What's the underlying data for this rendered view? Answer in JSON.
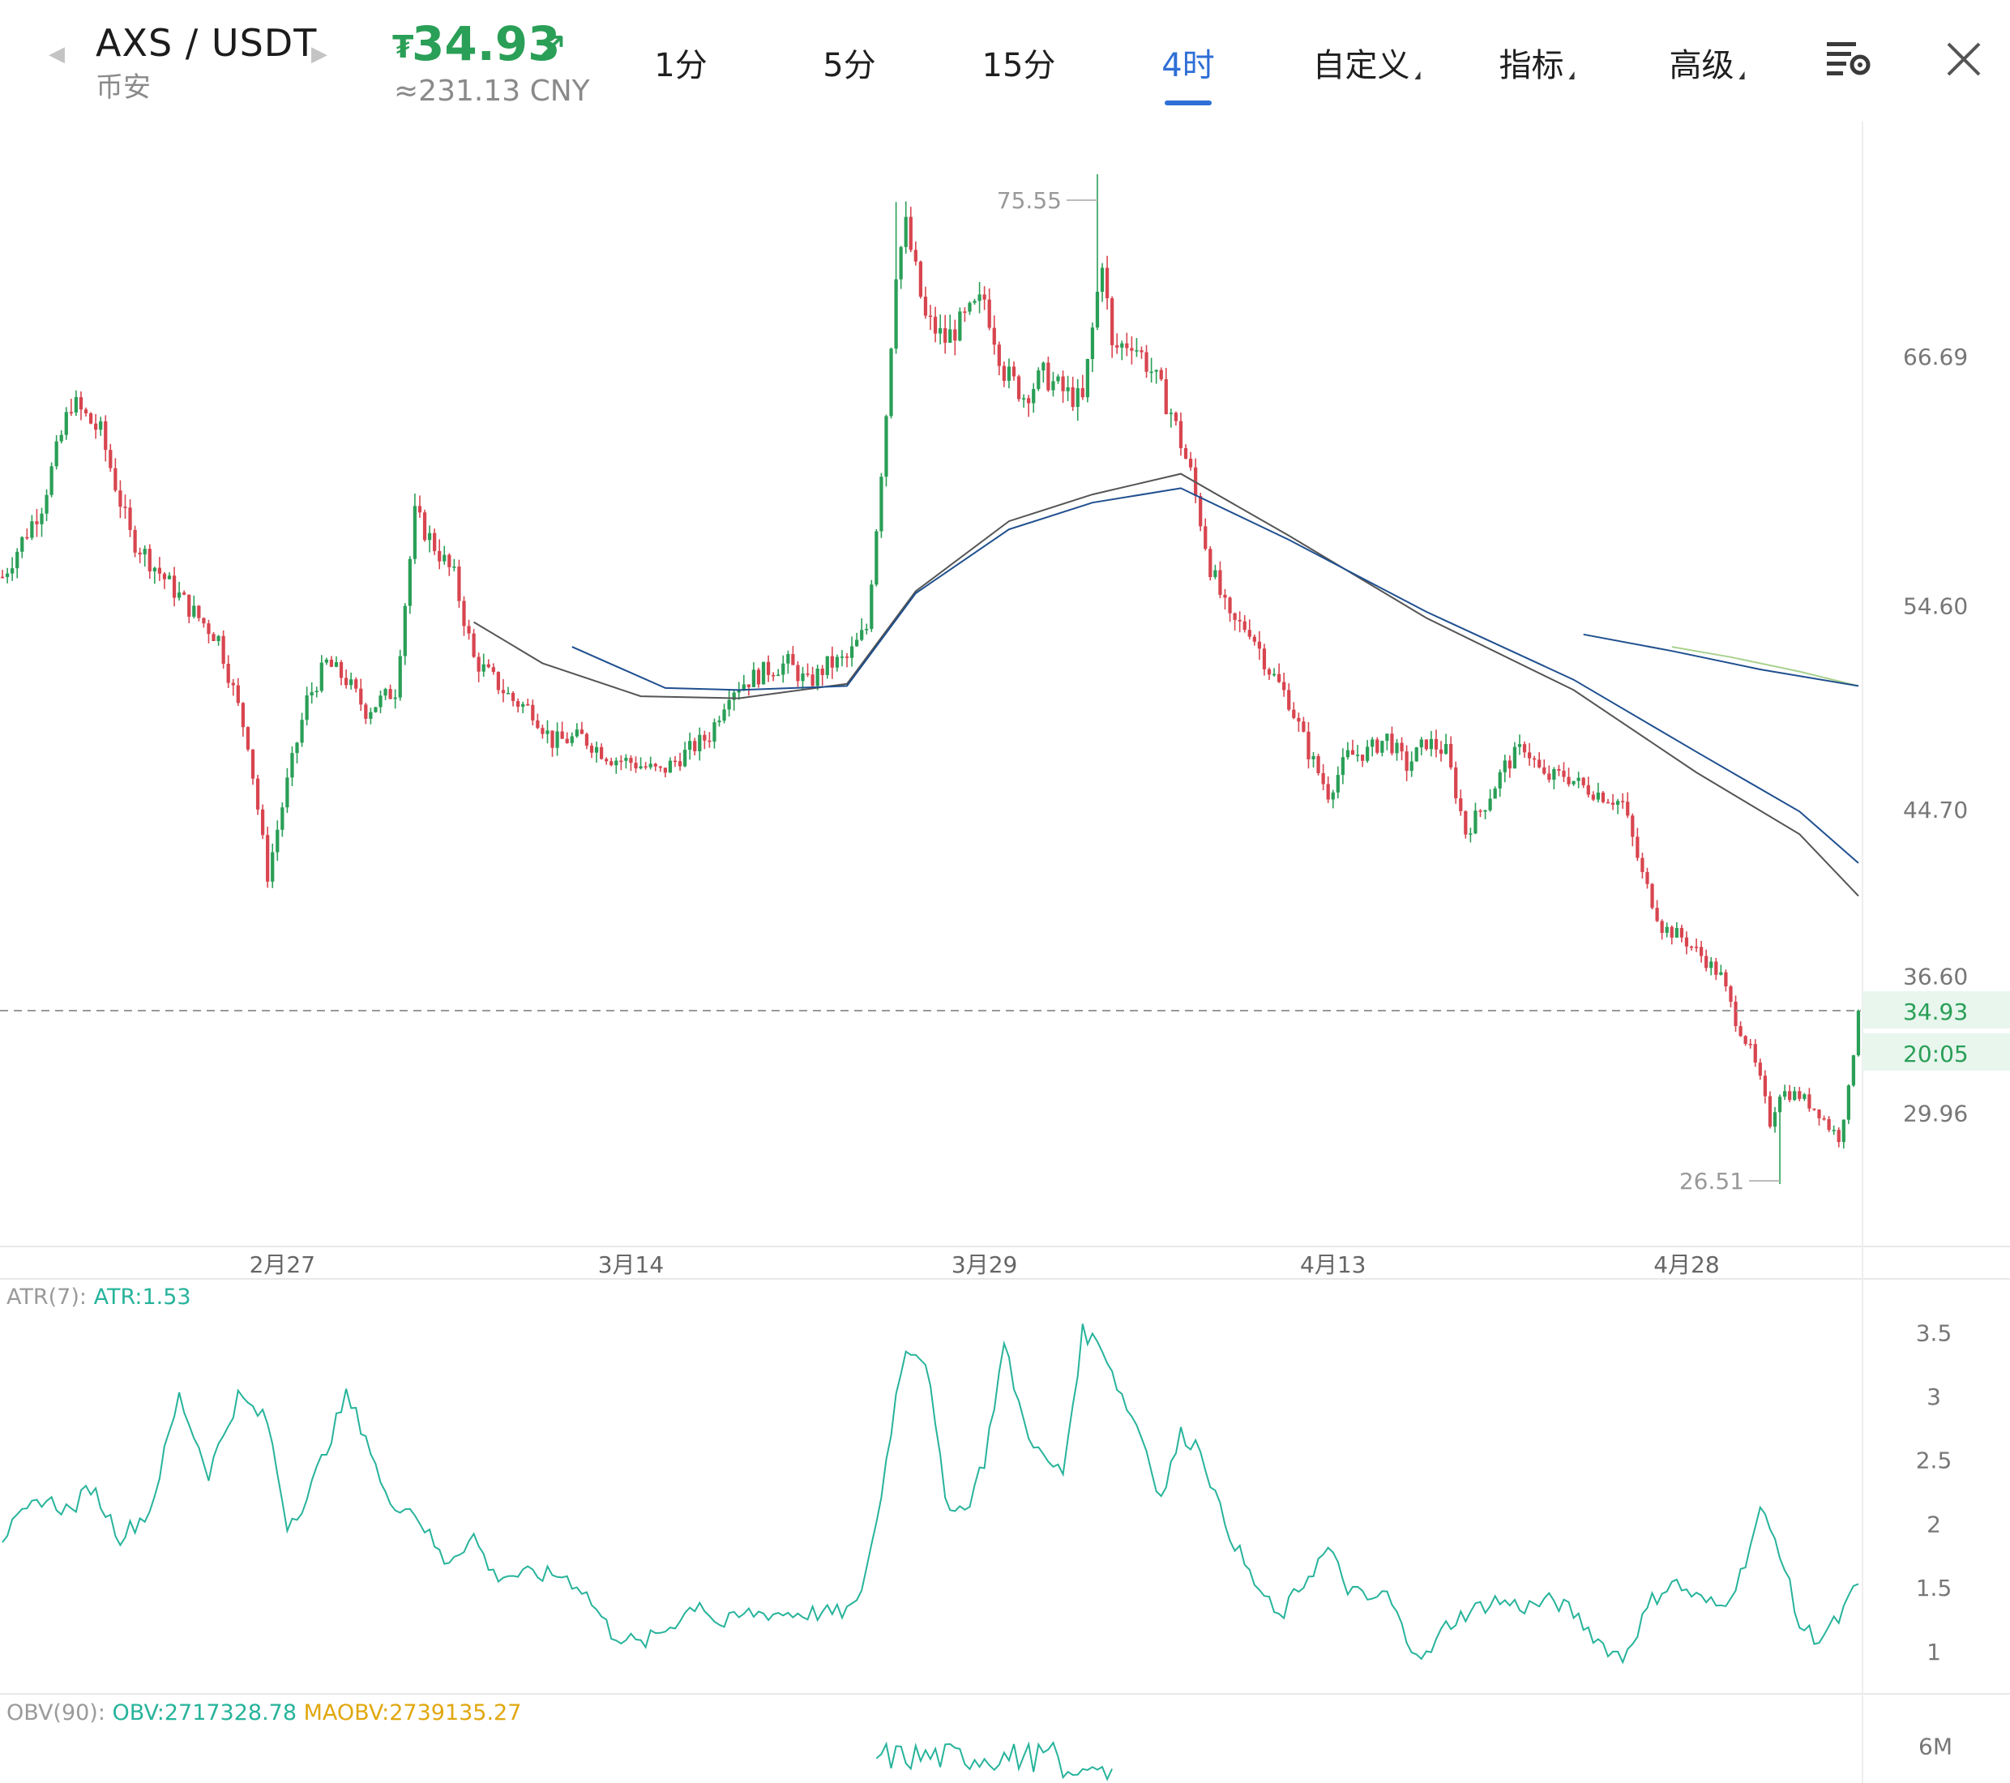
{
  "header": {
    "symbol": "AXS / USDT",
    "exchange": "币安",
    "price": "34.93",
    "price_icon": "tether-icon",
    "price_glyph": "₮",
    "trend_icon": "arrow-up-right-icon",
    "trend_glyph": "↗",
    "cny_value": "≈231.13 CNY",
    "price_color": "#2a9f57"
  },
  "tabs": [
    {
      "label": "1分",
      "active": false
    },
    {
      "label": "5分",
      "active": false
    },
    {
      "label": "15分",
      "active": false
    },
    {
      "label": "4时",
      "active": true
    },
    {
      "label": "自定义",
      "active": false,
      "dropdown": true
    },
    {
      "label": "指标",
      "active": false,
      "dropdown": true
    },
    {
      "label": "高级",
      "active": false,
      "dropdown": true
    }
  ],
  "toolbar": {
    "settings_icon": "chart-settings-icon",
    "close_icon": "close-icon"
  },
  "colors": {
    "up": "#2a9f57",
    "down": "#d8454f",
    "accent": "#2f6fd6",
    "ma_blue": "#1f4f8f",
    "ma_gray": "#555555",
    "ma_green": "#a9d18e",
    "atr": "#27b39b",
    "maobv": "#e0a70e"
  },
  "chart_data": [
    {
      "type": "candlestick",
      "pair": "AXS / USDT",
      "interval": "4时",
      "x_tick_labels": [
        "2月27",
        "3月14",
        "3月29",
        "4月13",
        "4月28"
      ],
      "y_tick_labels": [
        "66.69",
        "54.60",
        "44.70",
        "36.60",
        "29.96"
      ],
      "y_ticks": [
        66.69,
        54.6,
        44.7,
        36.6,
        29.96
      ],
      "ylim": [
        23.4,
        78.5
      ],
      "high_label": "75.55",
      "low_label": "26.51",
      "current_price_label": "34.93",
      "countdown_label": "20:05",
      "current_price": 34.93,
      "close_path": [
        [
          0,
          56.0
        ],
        [
          8,
          59.5
        ],
        [
          14,
          64.5
        ],
        [
          20,
          63.0
        ],
        [
          26,
          58.0
        ],
        [
          32,
          56.2
        ],
        [
          38,
          54.5
        ],
        [
          44,
          53.0
        ],
        [
          50,
          48.0
        ],
        [
          54,
          41.5
        ],
        [
          58,
          46.0
        ],
        [
          62,
          50.0
        ],
        [
          66,
          51.8
        ],
        [
          70,
          51.0
        ],
        [
          74,
          49.5
        ],
        [
          80,
          50.5
        ],
        [
          84,
          59.0
        ],
        [
          88,
          57.5
        ],
        [
          92,
          56.0
        ],
        [
          96,
          52.0
        ],
        [
          100,
          51.0
        ],
        [
          104,
          50.0
        ],
        [
          108,
          49.5
        ],
        [
          112,
          48.0
        ],
        [
          118,
          48.2
        ],
        [
          124,
          47.2
        ],
        [
          128,
          47.0
        ],
        [
          134,
          46.5
        ],
        [
          140,
          47.6
        ],
        [
          144,
          48.3
        ],
        [
          148,
          50.5
        ],
        [
          152,
          51.0
        ],
        [
          156,
          51.5
        ],
        [
          160,
          51.8
        ],
        [
          164,
          50.8
        ],
        [
          168,
          51.7
        ],
        [
          172,
          52.0
        ],
        [
          176,
          53.5
        ],
        [
          178,
          58.5
        ],
        [
          180,
          64.0
        ],
        [
          182,
          71.0
        ],
        [
          184,
          73.0
        ],
        [
          188,
          68.5
        ],
        [
          192,
          67.5
        ],
        [
          196,
          68.5
        ],
        [
          200,
          69.5
        ],
        [
          204,
          66.0
        ],
        [
          208,
          64.8
        ],
        [
          212,
          65.8
        ],
        [
          216,
          65.0
        ],
        [
          220,
          64.5
        ],
        [
          224,
          71.5
        ],
        [
          226,
          67.0
        ],
        [
          230,
          67.5
        ],
        [
          234,
          66.0
        ],
        [
          238,
          64.0
        ],
        [
          242,
          61.0
        ],
        [
          246,
          56.5
        ],
        [
          250,
          53.8
        ],
        [
          254,
          53.5
        ],
        [
          258,
          51.5
        ],
        [
          262,
          50.0
        ],
        [
          266,
          47.5
        ],
        [
          270,
          45.5
        ],
        [
          274,
          47.3
        ],
        [
          278,
          47.5
        ],
        [
          282,
          48.2
        ],
        [
          286,
          46.8
        ],
        [
          290,
          48.0
        ],
        [
          294,
          47.5
        ],
        [
          298,
          43.6
        ],
        [
          302,
          45.0
        ],
        [
          306,
          46.8
        ],
        [
          310,
          47.8
        ],
        [
          314,
          46.2
        ],
        [
          318,
          46.4
        ],
        [
          322,
          45.8
        ],
        [
          326,
          45.4
        ],
        [
          330,
          45.0
        ],
        [
          334,
          41.5
        ],
        [
          338,
          39.0
        ],
        [
          342,
          38.5
        ],
        [
          346,
          37.6
        ],
        [
          350,
          36.6
        ],
        [
          353,
          34.5
        ],
        [
          356,
          33.0
        ],
        [
          358,
          31.5
        ],
        [
          360,
          29.5
        ],
        [
          362,
          31.0
        ],
        [
          366,
          30.8
        ],
        [
          370,
          30.0
        ],
        [
          372,
          29.3
        ],
        [
          374,
          28.8
        ],
        [
          376,
          31.0
        ],
        [
          378,
          34.93
        ]
      ],
      "moving_averages": [
        {
          "color": "gray",
          "points": [
            [
              96,
              53.8
            ],
            [
              110,
              51.8
            ],
            [
              130,
              50.2
            ],
            [
              150,
              50.1
            ],
            [
              172,
              50.8
            ],
            [
              186,
              55.3
            ],
            [
              205,
              58.7
            ],
            [
              222,
              60.0
            ],
            [
              240,
              61.0
            ],
            [
              262,
              58.0
            ],
            [
              290,
              54.0
            ],
            [
              320,
              50.5
            ],
            [
              345,
              46.5
            ],
            [
              366,
              43.5
            ],
            [
              378,
              40.5
            ]
          ]
        },
        {
          "color": "blue",
          "points": [
            [
              116,
              52.6
            ],
            [
              135,
              50.6
            ],
            [
              150,
              50.5
            ],
            [
              172,
              50.7
            ],
            [
              186,
              55.2
            ],
            [
              205,
              58.3
            ],
            [
              222,
              59.6
            ],
            [
              240,
              60.3
            ],
            [
              262,
              57.8
            ],
            [
              290,
              54.3
            ],
            [
              320,
              51.0
            ],
            [
              345,
              47.5
            ],
            [
              366,
              44.6
            ],
            [
              378,
              42.1
            ]
          ]
        },
        {
          "color": "green",
          "points": [
            [
              340,
              52.6
            ],
            [
              352,
              52.1
            ],
            [
              366,
              51.4
            ],
            [
              378,
              50.7
            ]
          ]
        },
        {
          "color": "blue",
          "points": [
            [
              322,
              53.2
            ],
            [
              340,
              52.4
            ],
            [
              358,
              51.5
            ],
            [
              378,
              50.7
            ]
          ]
        }
      ]
    },
    {
      "type": "line",
      "name": "ATR(7):",
      "value_label": "ATR:1.53",
      "y_tick_labels": [
        "3.5",
        "3",
        "2.5",
        "2",
        "1.5",
        "1"
      ],
      "y_ticks": [
        3.5,
        3,
        2.5,
        2,
        1.5,
        1
      ],
      "ylim": [
        0.7,
        3.75
      ],
      "points": [
        [
          0,
          1.9
        ],
        [
          8,
          2.2
        ],
        [
          14,
          2.1
        ],
        [
          18,
          2.3
        ],
        [
          24,
          1.9
        ],
        [
          30,
          2.1
        ],
        [
          36,
          3.0
        ],
        [
          42,
          2.4
        ],
        [
          48,
          3.0
        ],
        [
          54,
          2.8
        ],
        [
          58,
          2.0
        ],
        [
          62,
          2.2
        ],
        [
          70,
          3.0
        ],
        [
          74,
          2.7
        ],
        [
          78,
          2.2
        ],
        [
          84,
          2.1
        ],
        [
          90,
          1.7
        ],
        [
          96,
          1.9
        ],
        [
          100,
          1.6
        ],
        [
          106,
          1.6
        ],
        [
          114,
          1.6
        ],
        [
          118,
          1.5
        ],
        [
          124,
          1.15
        ],
        [
          130,
          1.05
        ],
        [
          136,
          1.2
        ],
        [
          142,
          1.4
        ],
        [
          146,
          1.2
        ],
        [
          152,
          1.3
        ],
        [
          158,
          1.3
        ],
        [
          164,
          1.3
        ],
        [
          170,
          1.3
        ],
        [
          174,
          1.35
        ],
        [
          178,
          2.0
        ],
        [
          182,
          3.0
        ],
        [
          184,
          3.4
        ],
        [
          188,
          3.3
        ],
        [
          192,
          2.2
        ],
        [
          196,
          2.1
        ],
        [
          200,
          2.5
        ],
        [
          204,
          3.4
        ],
        [
          208,
          2.8
        ],
        [
          212,
          2.5
        ],
        [
          216,
          2.4
        ],
        [
          220,
          3.5
        ],
        [
          224,
          3.4
        ],
        [
          228,
          3.0
        ],
        [
          232,
          2.7
        ],
        [
          236,
          2.2
        ],
        [
          240,
          2.7
        ],
        [
          244,
          2.6
        ],
        [
          248,
          2.1
        ],
        [
          254,
          1.6
        ],
        [
          260,
          1.25
        ],
        [
          266,
          1.6
        ],
        [
          270,
          1.8
        ],
        [
          274,
          1.5
        ],
        [
          278,
          1.4
        ],
        [
          282,
          1.45
        ],
        [
          286,
          1.1
        ],
        [
          290,
          0.95
        ],
        [
          294,
          1.2
        ],
        [
          298,
          1.3
        ],
        [
          304,
          1.4
        ],
        [
          310,
          1.35
        ],
        [
          316,
          1.4
        ],
        [
          320,
          1.3
        ],
        [
          326,
          1.05
        ],
        [
          330,
          0.95
        ],
        [
          336,
          1.4
        ],
        [
          340,
          1.55
        ],
        [
          346,
          1.4
        ],
        [
          350,
          1.35
        ],
        [
          354,
          1.6
        ],
        [
          358,
          2.1
        ],
        [
          362,
          1.8
        ],
        [
          366,
          1.2
        ],
        [
          370,
          1.1
        ],
        [
          374,
          1.25
        ],
        [
          378,
          1.53
        ]
      ]
    },
    {
      "type": "line",
      "name": "OBV(90):",
      "value_label": "OBV:2717328.78",
      "ma_label": "MAOBV:2739135.27",
      "y_tick_labels": [
        "6M"
      ],
      "y_ticks": [
        6
      ],
      "ylim": [
        5.8,
        6.15
      ]
    }
  ]
}
